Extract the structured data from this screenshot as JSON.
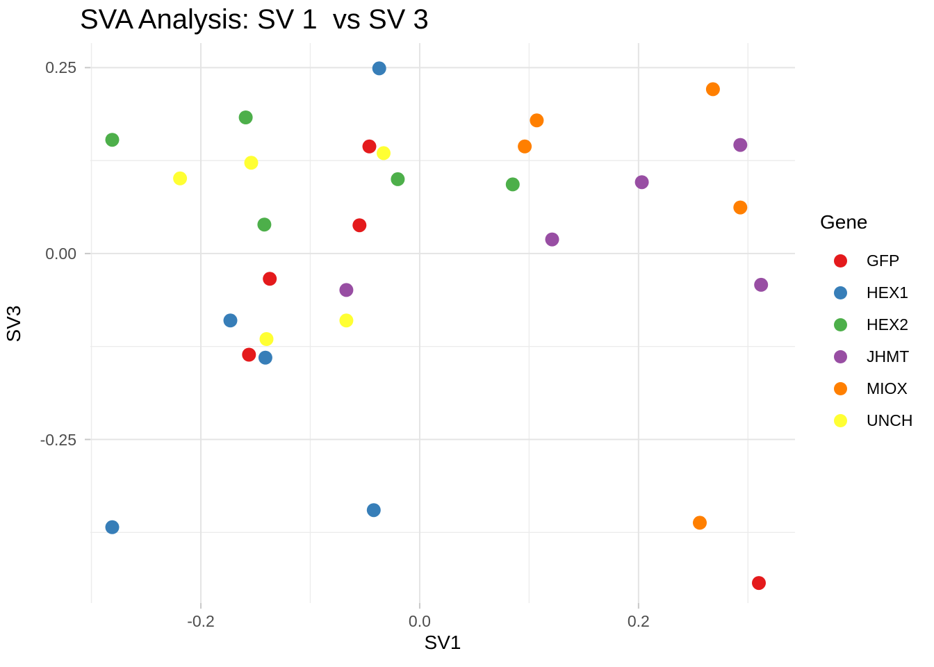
{
  "title": "SVA Analysis: SV 1  vs SV 3",
  "axes": {
    "x": {
      "label": "SV1",
      "ticks": [
        {
          "value": -0.2,
          "label": "-0.2"
        },
        {
          "value": 0.0,
          "label": "0.0"
        },
        {
          "value": 0.2,
          "label": "0.2"
        }
      ],
      "minor_ticks": [
        -0.3,
        -0.1,
        0.1,
        0.3
      ]
    },
    "y": {
      "label": "SV3",
      "ticks": [
        {
          "value": 0.25,
          "label": "0.25"
        },
        {
          "value": 0.0,
          "label": "0.00"
        },
        {
          "value": -0.25,
          "label": "-0.25"
        }
      ],
      "minor_ticks": [
        0.125,
        -0.125,
        -0.375
      ]
    }
  },
  "legend": {
    "title": "Gene",
    "items": [
      {
        "label": "GFP",
        "color": "#E41A1C"
      },
      {
        "label": "HEX1",
        "color": "#377EB8"
      },
      {
        "label": "HEX2",
        "color": "#4DAF4A"
      },
      {
        "label": "JHMT",
        "color": "#984EA3"
      },
      {
        "label": "MIOX",
        "color": "#FF7F00"
      },
      {
        "label": "UNCH",
        "color": "#FFFF33"
      }
    ]
  },
  "chart_data": {
    "type": "scatter",
    "title": "SVA Analysis: SV 1  vs SV 3",
    "xlabel": "SV1",
    "ylabel": "SV3",
    "xlim": [
      -0.301,
      0.343
    ],
    "ylim": [
      -0.47,
      0.283
    ],
    "grid": true,
    "legend_position": "right",
    "point_radius": 10,
    "series": [
      {
        "name": "GFP",
        "color": "#E41A1C",
        "points": [
          [
            -0.046,
            0.144
          ],
          [
            -0.055,
            0.038
          ],
          [
            -0.137,
            -0.034
          ],
          [
            -0.156,
            -0.136
          ],
          [
            0.31,
            -0.443
          ]
        ]
      },
      {
        "name": "HEX1",
        "color": "#377EB8",
        "points": [
          [
            -0.037,
            0.249
          ],
          [
            -0.173,
            -0.09
          ],
          [
            -0.141,
            -0.14
          ],
          [
            -0.042,
            -0.345
          ],
          [
            -0.281,
            -0.368
          ]
        ]
      },
      {
        "name": "HEX2",
        "color": "#4DAF4A",
        "points": [
          [
            -0.159,
            0.183
          ],
          [
            -0.281,
            0.153
          ],
          [
            -0.02,
            0.1
          ],
          [
            0.085,
            0.093
          ],
          [
            -0.142,
            0.039
          ]
        ]
      },
      {
        "name": "JHMT",
        "color": "#984EA3",
        "points": [
          [
            0.293,
            0.146
          ],
          [
            0.203,
            0.096
          ],
          [
            0.121,
            0.019
          ],
          [
            -0.067,
            -0.049
          ],
          [
            0.312,
            -0.042
          ]
        ]
      },
      {
        "name": "MIOX",
        "color": "#FF7F00",
        "points": [
          [
            0.268,
            0.221
          ],
          [
            0.107,
            0.179
          ],
          [
            0.096,
            0.144
          ],
          [
            0.293,
            0.062
          ],
          [
            0.256,
            -0.362
          ]
        ]
      },
      {
        "name": "UNCH",
        "color": "#FFFF33",
        "points": [
          [
            -0.033,
            0.135
          ],
          [
            -0.154,
            0.122
          ],
          [
            -0.219,
            0.101
          ],
          [
            -0.067,
            -0.09
          ],
          [
            -0.14,
            -0.115
          ]
        ]
      }
    ]
  },
  "colors": {
    "background": "#FFFFFF",
    "grid_major": "#E4E4E4",
    "grid_minor": "#ECECEC",
    "tick_mark": "#C8C8C8",
    "tick_label": "#4D4D4D",
    "text": "#000000"
  }
}
